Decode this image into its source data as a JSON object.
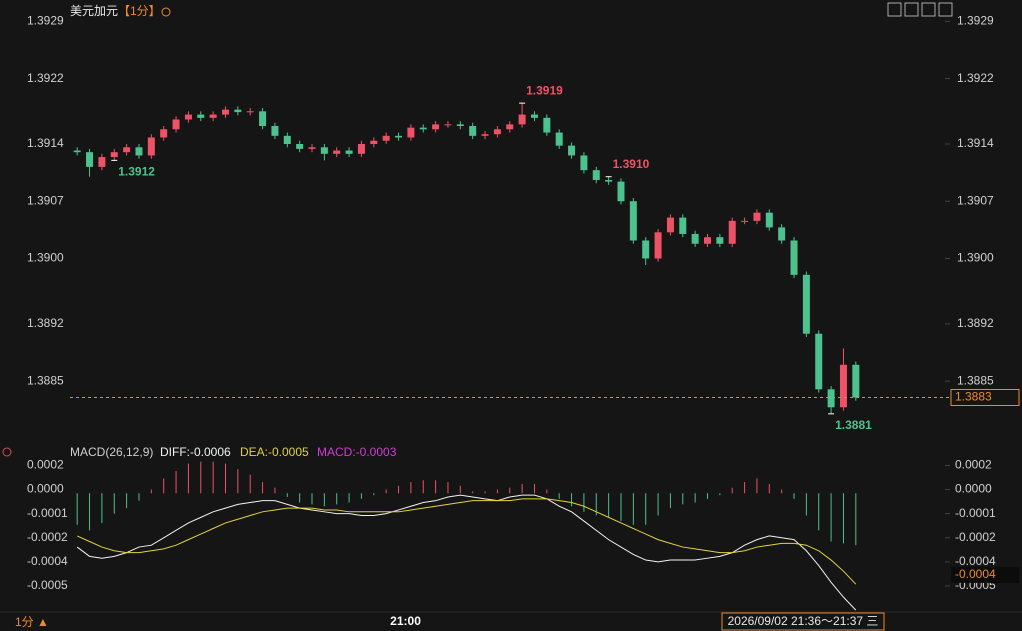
{
  "chart_data": [
    {
      "type": "candlestick",
      "title": "美元加元",
      "period": "【1分】",
      "up_color": "#ee5266",
      "down_color": "#4cc28f",
      "categories": [
        null,
        null,
        null,
        null,
        null,
        null,
        null,
        null,
        null,
        null,
        null,
        null,
        null,
        null,
        null,
        null,
        null,
        null,
        null,
        null,
        null,
        null,
        null,
        null,
        null,
        null,
        "21:00",
        null,
        null,
        null,
        null,
        null,
        null,
        null,
        null,
        null,
        null,
        null,
        null,
        null,
        null,
        null,
        null,
        null,
        null,
        null,
        null,
        null,
        null,
        null,
        null,
        null,
        null,
        null,
        null,
        null,
        null,
        null,
        null,
        null,
        null,
        null,
        null,
        null
      ],
      "open": [
        1.39132,
        1.3913,
        1.39112,
        1.39124,
        1.3913,
        1.39136,
        1.39126,
        1.39148,
        1.39158,
        1.3917,
        1.39176,
        1.39172,
        1.39176,
        1.39182,
        1.39179,
        1.3918,
        1.39162,
        1.3915,
        1.3914,
        1.39134,
        1.39136,
        1.39128,
        1.39132,
        1.39128,
        1.3914,
        1.39144,
        1.3915,
        1.39148,
        1.3916,
        1.39158,
        1.39164,
        1.39164,
        1.39162,
        1.3915,
        1.39152,
        1.39158,
        1.39164,
        1.39176,
        1.39172,
        1.39154,
        1.39138,
        1.39126,
        1.39108,
        1.39096,
        1.39094,
        1.3907,
        1.39022,
        1.39,
        1.39032,
        1.3905,
        1.3903,
        1.39018,
        1.39026,
        1.39018,
        1.39046,
        1.39046,
        1.39056,
        1.39038,
        1.39022,
        1.3898,
        1.38908,
        1.3884,
        1.38818,
        1.3887
      ],
      "high": [
        1.39136,
        1.39134,
        1.39128,
        1.39134,
        1.3914,
        1.3914,
        1.39152,
        1.39162,
        1.39174,
        1.3918,
        1.3918,
        1.3918,
        1.39186,
        1.39186,
        1.39184,
        1.39184,
        1.39166,
        1.39154,
        1.39144,
        1.3914,
        1.3914,
        1.39136,
        1.39136,
        1.39144,
        1.39148,
        1.39154,
        1.39154,
        1.39164,
        1.39164,
        1.39168,
        1.39168,
        1.39168,
        1.39166,
        1.39156,
        1.39162,
        1.39168,
        1.3919,
        1.3918,
        1.39176,
        1.39158,
        1.39142,
        1.3913,
        1.39112,
        1.391,
        1.39098,
        1.39074,
        1.39026,
        1.39036,
        1.39054,
        1.39054,
        1.39034,
        1.3903,
        1.3903,
        1.3905,
        1.3905,
        1.3906,
        1.3906,
        1.39042,
        1.39026,
        1.38984,
        1.38912,
        1.38844,
        1.3889,
        1.38874
      ],
      "low": [
        1.39126,
        1.391,
        1.39108,
        1.3912,
        1.39126,
        1.39122,
        1.39122,
        1.39144,
        1.39154,
        1.39166,
        1.39168,
        1.39168,
        1.39172,
        1.39175,
        1.39175,
        1.39158,
        1.39146,
        1.39136,
        1.3913,
        1.3913,
        1.3912,
        1.39124,
        1.39124,
        1.39124,
        1.39136,
        1.3914,
        1.39144,
        1.39144,
        1.39154,
        1.39154,
        1.3916,
        1.39158,
        1.39146,
        1.39146,
        1.39148,
        1.39154,
        1.3916,
        1.39168,
        1.3915,
        1.39134,
        1.39122,
        1.39104,
        1.39092,
        1.3909,
        1.39066,
        1.39018,
        1.38992,
        1.38996,
        1.39028,
        1.39026,
        1.39014,
        1.39014,
        1.39014,
        1.39014,
        1.39042,
        1.39042,
        1.39034,
        1.39018,
        1.38976,
        1.38904,
        1.38836,
        1.3881,
        1.38814,
        1.38826
      ],
      "close": [
        1.3913,
        1.39112,
        1.39124,
        1.3913,
        1.39136,
        1.39126,
        1.39148,
        1.39158,
        1.3917,
        1.39176,
        1.39172,
        1.39176,
        1.39182,
        1.39179,
        1.3918,
        1.39162,
        1.3915,
        1.3914,
        1.39134,
        1.39136,
        1.39128,
        1.39132,
        1.39128,
        1.3914,
        1.39144,
        1.3915,
        1.39148,
        1.3916,
        1.39158,
        1.39164,
        1.39164,
        1.39162,
        1.3915,
        1.39152,
        1.39158,
        1.39164,
        1.39176,
        1.39172,
        1.39154,
        1.39138,
        1.39126,
        1.39108,
        1.39096,
        1.39094,
        1.3907,
        1.39022,
        1.39,
        1.39032,
        1.3905,
        1.3903,
        1.39018,
        1.39026,
        1.39018,
        1.39046,
        1.39046,
        1.39056,
        1.39038,
        1.39022,
        1.3898,
        1.38908,
        1.3884,
        1.38818,
        1.3887,
        1.3883
      ],
      "annotations": [
        {
          "value": 1.391,
          "label": "1.3910"
        },
        {
          "value": 1.3912,
          "label": "1.3912"
        },
        {
          "value": 1.3919,
          "label": "1.3919"
        },
        {
          "value": 1.3881,
          "label": "1.3881"
        }
      ],
      "last_price": {
        "value": 1.3883,
        "label": "1.3883"
      },
      "ylim": [
        1.38778,
        1.3931
      ],
      "yticks": [
        1.3929,
        1.3922,
        1.3914,
        1.3907,
        {
          "value": 1.39,
          "label": "1.3900"
        },
        1.3892,
        1.3885
      ],
      "crosshair_time": "2026/09/02 21:36～21:37 三",
      "period_selector": "1分 ▲"
    },
    {
      "type": "macd",
      "title": "MACD(26,12,9)",
      "series": [
        {
          "name": "DIFF",
          "legend": "DIFF:-0.0006",
          "color": "#f2f2f2",
          "values": [
            -0.00029,
            -0.00034,
            -0.00035,
            -0.00034,
            -0.00032,
            -0.00029,
            -0.00028,
            -0.00024,
            -0.0002,
            -0.00016,
            -0.00013,
            -0.0001,
            -8e-05,
            -6e-05,
            -5e-05,
            -4e-05,
            -4e-05,
            -6e-05,
            -8e-05,
            -9e-05,
            -0.0001,
            -0.00011,
            -0.00011,
            -0.00012,
            -0.00012,
            -0.00011,
            -9e-05,
            -7e-05,
            -5e-05,
            -4e-05,
            -2e-05,
            -1e-05,
            -2e-05,
            -3e-05,
            -4e-05,
            -2e-05,
            -1e-05,
            -1e-05,
            -3e-05,
            -7e-05,
            -0.0001,
            -0.00015,
            -0.0002,
            -0.00025,
            -0.00029,
            -0.00033,
            -0.00036,
            -0.00037,
            -0.00036,
            -0.00036,
            -0.00036,
            -0.00035,
            -0.00034,
            -0.00032,
            -0.00028,
            -0.00025,
            -0.00023,
            -0.00024,
            -0.00025,
            -0.00031,
            -0.00039,
            -0.00048,
            -0.00056,
            -0.00063
          ]
        },
        {
          "name": "DEA",
          "legend": "DEA:-0.0005",
          "color": "#e3d33a",
          "values": [
            -0.00023,
            -0.00026,
            -0.00029,
            -0.00031,
            -0.00032,
            -0.00032,
            -0.00031,
            -0.0003,
            -0.00028,
            -0.00025,
            -0.00022,
            -0.00019,
            -0.00016,
            -0.00014,
            -0.00012,
            -0.0001,
            -9e-05,
            -8e-05,
            -8e-05,
            -8e-05,
            -9e-05,
            -9e-05,
            -0.0001,
            -0.0001,
            -0.0001,
            -0.0001,
            -0.0001,
            -9e-05,
            -8e-05,
            -7e-05,
            -6e-05,
            -5e-05,
            -4e-05,
            -4e-05,
            -4e-05,
            -4e-05,
            -3e-05,
            -3e-05,
            -3e-05,
            -4e-05,
            -5e-05,
            -7e-05,
            -0.0001,
            -0.00013,
            -0.00016,
            -0.00019,
            -0.00022,
            -0.00025,
            -0.00027,
            -0.00029,
            -0.0003,
            -0.00031,
            -0.00032,
            -0.00032,
            -0.00031,
            -0.00029,
            -0.00028,
            -0.00027,
            -0.00027,
            -0.00028,
            -0.00031,
            -0.00036,
            -0.00042,
            -0.00049
          ]
        },
        {
          "name": "MACD",
          "legend": "MACD:-0.0003",
          "color": "#d23cd2",
          "values": [
            -0.00017,
            -0.0002,
            -0.00016,
            -0.00011,
            -8e-05,
            -4e-05,
            2e-05,
            8e-05,
            0.00012,
            0.00016,
            0.00017,
            0.00017,
            0.00016,
            0.00013,
            0.0001,
            6e-05,
            3e-05,
            -2e-05,
            -5e-05,
            -6e-05,
            -7e-05,
            -6e-05,
            -5e-05,
            -3e-05,
            -1e-05,
            2e-05,
            4e-05,
            6e-05,
            7e-05,
            7e-05,
            6e-05,
            4e-05,
            1e-05,
            1e-05,
            2e-05,
            3e-05,
            5e-05,
            5e-05,
            2e-05,
            -3e-05,
            -7e-05,
            -0.0001,
            -0.00012,
            -0.00013,
            -0.00015,
            -0.00017,
            -0.00017,
            -0.00012,
            -8e-05,
            -6e-05,
            -5e-05,
            -3e-05,
            -1e-05,
            3e-05,
            6e-05,
            8e-05,
            5e-05,
            2e-05,
            -3e-05,
            -0.00012,
            -0.0002,
            -0.00026,
            -0.00027,
            -0.00028
          ]
        }
      ],
      "last_value": {
        "value": -0.00044,
        "label": "-0.0004"
      },
      "ylim": [
        -0.00064,
        0.00019
      ],
      "yticks": [
        {
          "value": 0.00015,
          "label": "0.0002"
        },
        {
          "value": 2e-05,
          "label": "0.0000"
        },
        {
          "value": -0.00011,
          "label": "-0.0001"
        },
        {
          "value": -0.00024,
          "label": "-0.0002"
        },
        {
          "value": -0.00037,
          "label": "-0.0004"
        },
        {
          "value": -0.0005,
          "label": "-0.0005"
        }
      ]
    }
  ]
}
